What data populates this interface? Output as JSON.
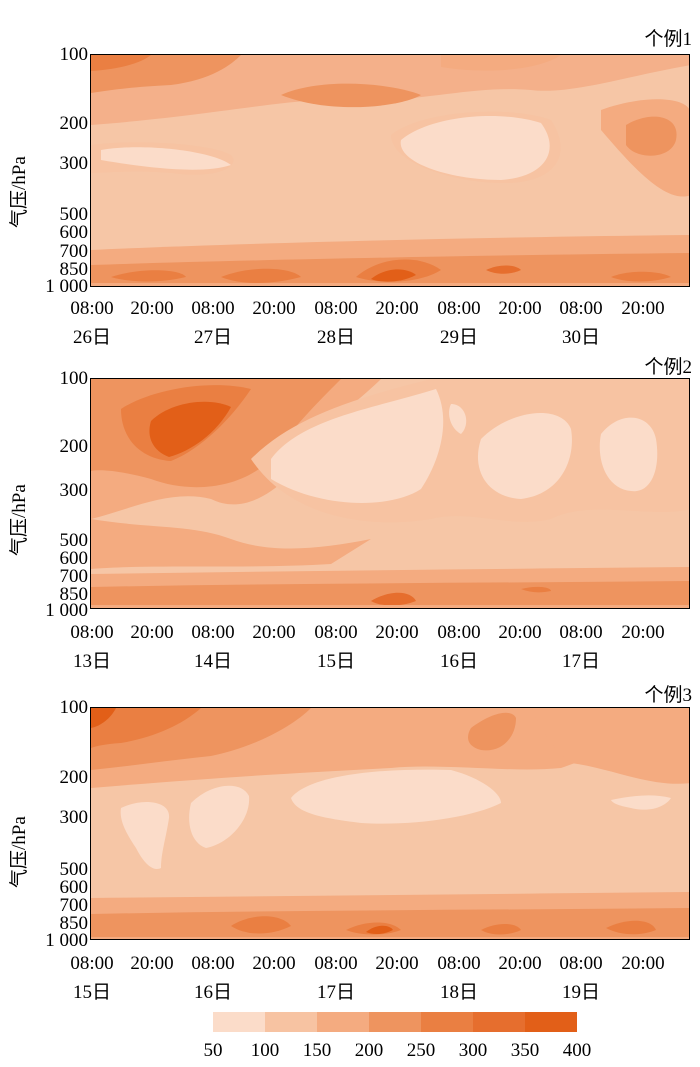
{
  "colorbar": {
    "labels": [
      "50",
      "100",
      "150",
      "200",
      "250",
      "300",
      "350",
      "400"
    ],
    "colors": [
      "#fbdcc9",
      "#f7c3a2",
      "#f4ab80",
      "#ee945f",
      "#ea7f42",
      "#e66e2e",
      "#e25f18"
    ]
  },
  "chart_data": [
    {
      "type": "heatmap",
      "title": "个例1",
      "ylabel": "气压/hPa",
      "yticks": [
        "100",
        "200",
        "300",
        "500",
        "600",
        "700",
        "850",
        "1 000"
      ],
      "xticks": [
        "08:00",
        "20:00",
        "08:00",
        "20:00",
        "08:00",
        "20:00",
        "08:00",
        "20:00",
        "08:00",
        "20:00"
      ],
      "dates": [
        "26日",
        "27日",
        "28日",
        "29日",
        "30日"
      ]
    },
    {
      "type": "heatmap",
      "title": "个例2",
      "ylabel": "气压/hPa",
      "yticks": [
        "100",
        "200",
        "300",
        "500",
        "600",
        "700",
        "850",
        "1 000"
      ],
      "xticks": [
        "08:00",
        "20:00",
        "08:00",
        "20:00",
        "08:00",
        "20:00",
        "08:00",
        "20:00",
        "08:00",
        "20:00"
      ],
      "dates": [
        "13日",
        "14日",
        "15日",
        "16日",
        "17日"
      ]
    },
    {
      "type": "heatmap",
      "title": "个例3",
      "ylabel": "气压/hPa",
      "yticks": [
        "100",
        "200",
        "300",
        "500",
        "600",
        "700",
        "850",
        "1 000"
      ],
      "xticks": [
        "08:00",
        "20:00",
        "08:00",
        "20:00",
        "08:00",
        "20:00",
        "08:00",
        "20:00",
        "08:00",
        "20:00"
      ],
      "dates": [
        "15日",
        "16日",
        "17日",
        "18日",
        "19日"
      ]
    }
  ]
}
